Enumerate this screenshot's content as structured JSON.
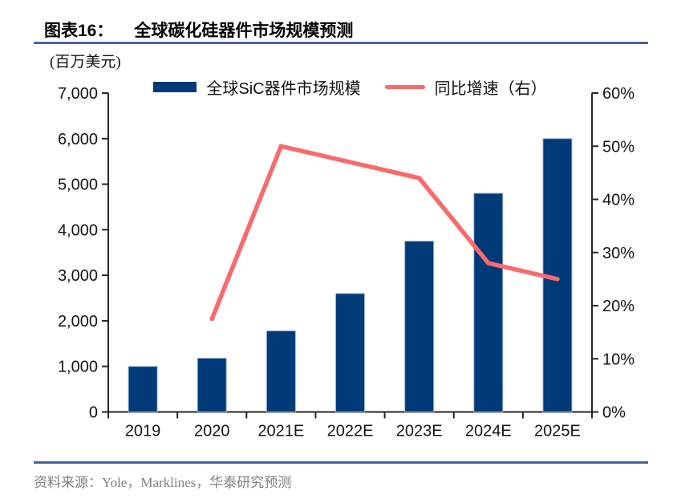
{
  "header": {
    "tag": "图表16：",
    "title": "全球碳化硅器件市场规模预测"
  },
  "unit_label": "(百万美元)",
  "legend": [
    {
      "label": "全球SiC器件市场规模",
      "type": "bar",
      "color": "#003A78"
    },
    {
      "label": "同比增速（右）",
      "type": "line",
      "color": "#F96A6C"
    }
  ],
  "source": "资料来源：Yole，Marklines，华泰研究预测",
  "colors": {
    "bar": "#003A78",
    "bar_edge": "#9FB4D8",
    "line": "#F96A6C",
    "rule": "#44659C",
    "axis": "#262626"
  },
  "chart_data": {
    "type": "bar",
    "title": "全球碳化硅器件市场规模预测",
    "xlabel": "",
    "ylabel": "(百万美元)",
    "categories": [
      "2019",
      "2020",
      "2021E",
      "2022E",
      "2023E",
      "2024E",
      "2025E"
    ],
    "series": [
      {
        "name": "全球SiC器件市场规模",
        "type": "bar",
        "axis": "left",
        "color": "#003A78",
        "values": [
          1000,
          1180,
          1780,
          2600,
          3750,
          4800,
          6000
        ]
      },
      {
        "name": "同比增速（右）",
        "type": "line",
        "axis": "right",
        "color": "#F96A6C",
        "values": [
          null,
          17.5,
          50,
          47,
          44,
          28,
          25
        ]
      }
    ],
    "left_axis": {
      "min": 0,
      "max": 7000,
      "step": 1000,
      "tick_labels": [
        "0",
        "1,000",
        "2,000",
        "3,000",
        "4,000",
        "5,000",
        "6,000",
        "7,000"
      ]
    },
    "right_axis": {
      "min": 0,
      "max": 60,
      "step": 10,
      "suffix": "%",
      "tick_labels": [
        "0%",
        "10%",
        "20%",
        "30%",
        "40%",
        "50%",
        "60%"
      ]
    },
    "legend_position": "top",
    "grid": false
  }
}
